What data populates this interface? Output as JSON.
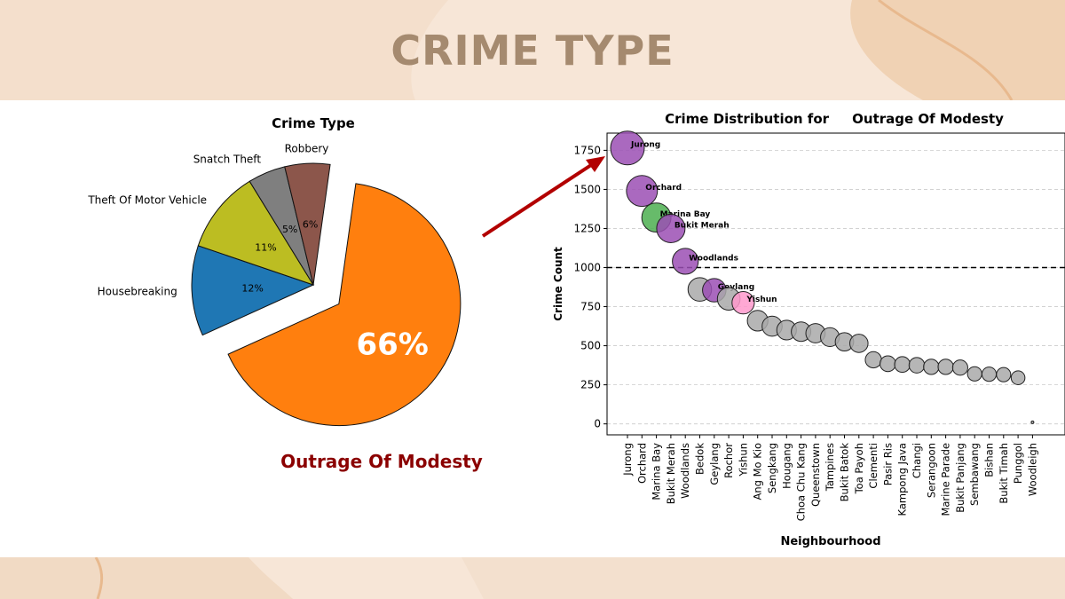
{
  "page": {
    "title": "CRIME TYPE",
    "highlight_label": "Outrage Of Modesty",
    "colors": {
      "background": "#f7e6d7",
      "title": "#a58a6f",
      "highlight_label": "#8b0000",
      "arrow": "#b20000"
    }
  },
  "chart_data": [
    {
      "type": "pie",
      "title": "Crime Type",
      "slices": [
        {
          "label": "Outrage Of Modesty",
          "value": 66,
          "pct_label": "66%",
          "color": "#ff7f0e",
          "exploded": true
        },
        {
          "label": "Housebreaking",
          "value": 12,
          "pct_label": "12%",
          "color": "#1f77b4",
          "exploded": false
        },
        {
          "label": "Theft Of Motor Vehicle",
          "value": 11,
          "pct_label": "11%",
          "color": "#bcbd22",
          "exploded": false
        },
        {
          "label": "Snatch Theft",
          "value": 5,
          "pct_label": "5%",
          "color": "#7f7f7f",
          "exploded": false
        },
        {
          "label": "Robbery",
          "value": 6,
          "pct_label": "6%",
          "color": "#8c564b",
          "exploded": false
        }
      ]
    },
    {
      "type": "scatter",
      "title": "Crime Distribution for     Outrage Of Modesty",
      "xlabel": "Neighbourhood",
      "ylabel": "Crime Count",
      "ylim": [
        -70,
        1860
      ],
      "yticks": [
        0,
        250,
        500,
        750,
        1000,
        1250,
        1500,
        1750
      ],
      "threshold": 1000,
      "grid": "horizontal dashed",
      "points": [
        {
          "x": "Jurong",
          "y": 1765,
          "color": "#9b4fb4",
          "label": "Jurong"
        },
        {
          "x": "Orchard",
          "y": 1490,
          "color": "#9b4fb4",
          "label": "Orchard"
        },
        {
          "x": "Marina Bay",
          "y": 1320,
          "color": "#4caf50",
          "label": "Marina Bay"
        },
        {
          "x": "Bukit Merah",
          "y": 1250,
          "color": "#9b4fb4",
          "label": "Bukit Merah"
        },
        {
          "x": "Woodlands",
          "y": 1040,
          "color": "#9b4fb4",
          "label": "Woodlands"
        },
        {
          "x": "Bedok",
          "y": 860,
          "color": "#a9a9a9",
          "label": ""
        },
        {
          "x": "Geylang",
          "y": 855,
          "color": "#9b4fb4",
          "label": "Geylang"
        },
        {
          "x": "Rochor",
          "y": 800,
          "color": "#a9a9a9",
          "label": ""
        },
        {
          "x": "Yishun",
          "y": 775,
          "color": "#ff99cc",
          "label": "Yishun"
        },
        {
          "x": "Ang Mo Kio",
          "y": 660,
          "color": "#a9a9a9",
          "label": ""
        },
        {
          "x": "Sengkang",
          "y": 625,
          "color": "#a9a9a9",
          "label": ""
        },
        {
          "x": "Hougang",
          "y": 600,
          "color": "#a9a9a9",
          "label": ""
        },
        {
          "x": "Choa Chu Kang",
          "y": 590,
          "color": "#a9a9a9",
          "label": ""
        },
        {
          "x": "Queenstown",
          "y": 580,
          "color": "#a9a9a9",
          "label": ""
        },
        {
          "x": "Tampines",
          "y": 555,
          "color": "#a9a9a9",
          "label": ""
        },
        {
          "x": "Bukit Batok",
          "y": 525,
          "color": "#a9a9a9",
          "label": ""
        },
        {
          "x": "Toa Payoh",
          "y": 515,
          "color": "#a9a9a9",
          "label": ""
        },
        {
          "x": "Clementi",
          "y": 410,
          "color": "#a9a9a9",
          "label": ""
        },
        {
          "x": "Pasir Ris",
          "y": 385,
          "color": "#a9a9a9",
          "label": ""
        },
        {
          "x": "Kampong Java",
          "y": 380,
          "color": "#a9a9a9",
          "label": ""
        },
        {
          "x": "Changi",
          "y": 375,
          "color": "#a9a9a9",
          "label": ""
        },
        {
          "x": "Serangoon",
          "y": 365,
          "color": "#a9a9a9",
          "label": ""
        },
        {
          "x": "Marine Parade",
          "y": 365,
          "color": "#a9a9a9",
          "label": ""
        },
        {
          "x": "Bukit Panjang",
          "y": 360,
          "color": "#a9a9a9",
          "label": ""
        },
        {
          "x": "Sembawang",
          "y": 320,
          "color": "#a9a9a9",
          "label": ""
        },
        {
          "x": "Bishan",
          "y": 318,
          "color": "#a9a9a9",
          "label": ""
        },
        {
          "x": "Bukit Timah",
          "y": 315,
          "color": "#a9a9a9",
          "label": ""
        },
        {
          "x": "Punggol",
          "y": 295,
          "color": "#a9a9a9",
          "label": ""
        },
        {
          "x": "Woodleigh",
          "y": 10,
          "color": "#a9a9a9",
          "label": ""
        }
      ]
    }
  ]
}
